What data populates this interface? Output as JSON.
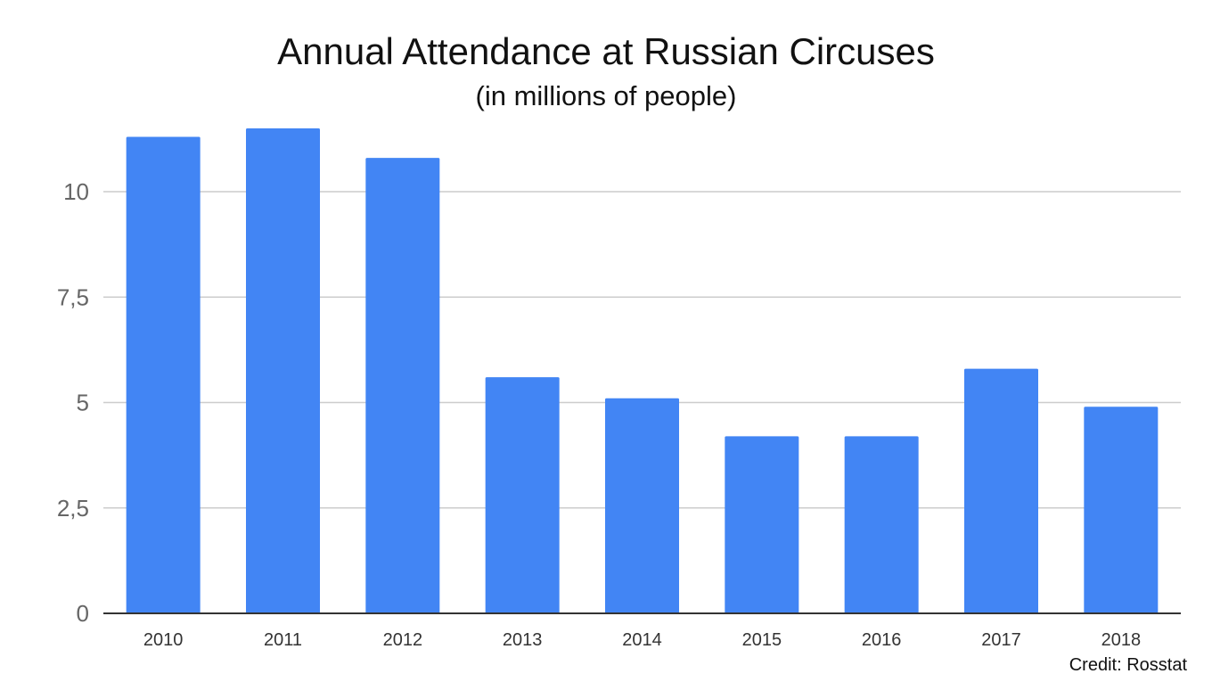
{
  "chart_data": {
    "type": "bar",
    "title": "Annual Attendance at Russian Circuses",
    "subtitle": "(in millions of people)",
    "categories": [
      "2010",
      "2011",
      "2012",
      "2013",
      "2014",
      "2015",
      "2016",
      "2017",
      "2018"
    ],
    "values": [
      11.3,
      11.5,
      10.8,
      5.6,
      5.1,
      4.2,
      4.2,
      5.8,
      4.9
    ],
    "ylim": [
      0,
      12
    ],
    "yticks": [
      0,
      2.5,
      5,
      7.5,
      10
    ],
    "ytick_labels": [
      "0",
      "2,5",
      "5",
      "7,5",
      "10"
    ],
    "grid": true,
    "legend": "none",
    "bar_color": "#4285f4"
  },
  "credit": "Credit: Rosstat"
}
